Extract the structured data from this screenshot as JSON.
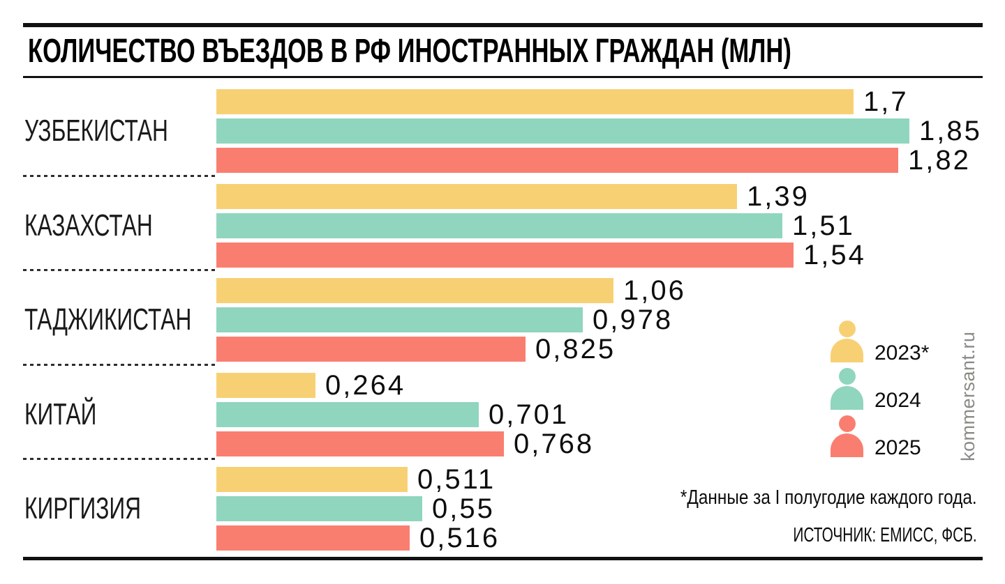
{
  "title": "КОЛИЧЕСТВО ВЪЕЗДОВ В РФ ИНОСТРАННЫХ ГРАЖДАН (МЛН)",
  "brand": "kommersant.ru",
  "footnote": "*Данные за I полугодие каждого года.",
  "source": "ИСТОЧНИК: ЕМИСС, ФСБ.",
  "colors": {
    "year_2023": "#F8D074",
    "year_2024": "#90D5BE",
    "year_2025": "#FA7E70",
    "watermark": "#8B8B86",
    "rules": "#111111"
  },
  "legend": {
    "items": [
      {
        "label": "2023*",
        "color": "#F8D074",
        "icon": "person-icon"
      },
      {
        "label": "2024",
        "color": "#90D5BE",
        "icon": "person-icon"
      },
      {
        "label": "2025",
        "color": "#FA7E70",
        "icon": "person-icon"
      }
    ]
  },
  "chart_data": {
    "type": "bar",
    "orientation": "horizontal",
    "title": "КОЛИЧЕСТВО ВЪЕЗДОВ В РФ ИНОСТРАННЫХ ГРАЖДАН (МЛН)",
    "unit": "млн",
    "categories": [
      "УЗБЕКИСТАН",
      "КАЗАХСТАН",
      "ТАДЖИКИСТАН",
      "КИТАЙ",
      "КИРГИЗИЯ"
    ],
    "series": [
      {
        "name": "2023*",
        "color": "#F8D074",
        "values": [
          1.7,
          1.39,
          1.06,
          0.264,
          0.511
        ],
        "value_labels": [
          "1,7",
          "1,39",
          "1,06",
          "0,264",
          "0,511"
        ]
      },
      {
        "name": "2024",
        "color": "#90D5BE",
        "values": [
          1.85,
          1.51,
          0.978,
          0.701,
          0.55
        ],
        "value_labels": [
          "1,85",
          "1,51",
          "0,978",
          "0,701",
          "0,55"
        ]
      },
      {
        "name": "2025",
        "color": "#FA7E70",
        "values": [
          1.82,
          1.54,
          0.825,
          0.768,
          0.516
        ],
        "value_labels": [
          "1,82",
          "1,54",
          "0,825",
          "0,768",
          "0,516"
        ]
      }
    ],
    "xlim": [
      0,
      2.05
    ],
    "grid": false,
    "value_labels_visible": true,
    "legend_position": "right-middle"
  }
}
